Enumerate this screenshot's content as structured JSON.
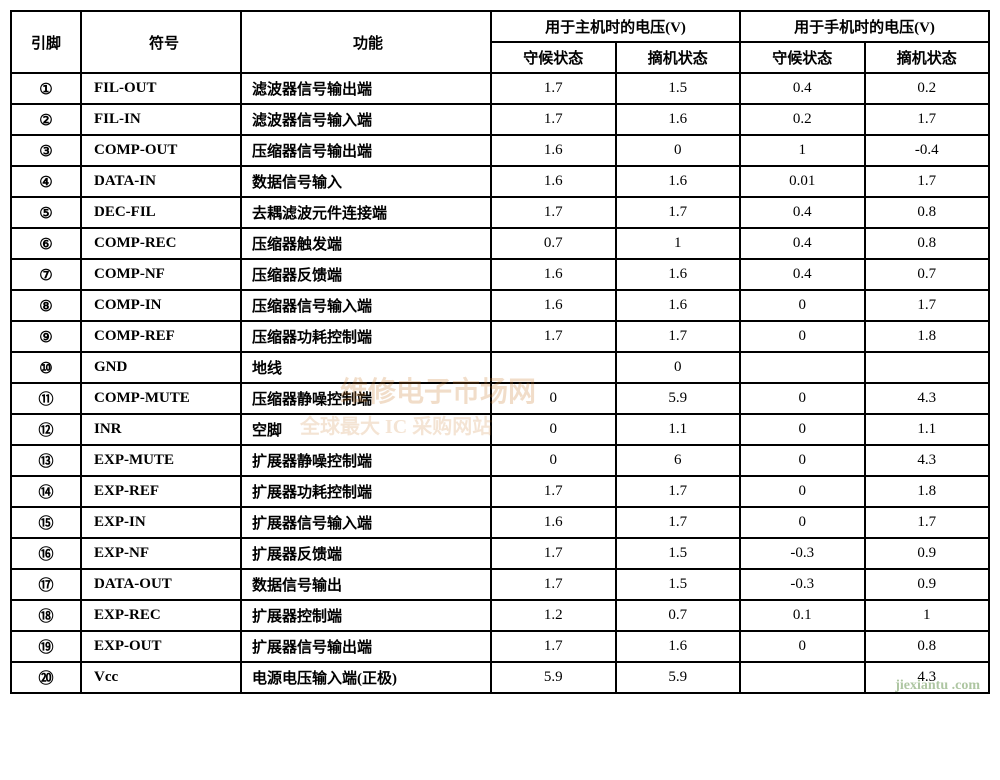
{
  "headers": {
    "pin": "引脚",
    "symbol": "符号",
    "func": "功能",
    "main_v": "用于主机时的电压(V)",
    "hand_v": "用于手机时的电压(V)",
    "standby": "守候状态",
    "offhook": "摘机状态"
  },
  "watermark": {
    "w1": "维修电子市场网",
    "w2": "全球最大 IC 采购网站",
    "w3": "jiexiantu .com"
  },
  "rows": [
    {
      "pin": "①",
      "sym": "FIL-OUT",
      "func": "滤波器信号输出端",
      "m1": "1.7",
      "m2": "1.5",
      "h1": "0.4",
      "h2": "0.2"
    },
    {
      "pin": "②",
      "sym": "FIL-IN",
      "func": "滤波器信号输入端",
      "m1": "1.7",
      "m2": "1.6",
      "h1": "0.2",
      "h2": "1.7"
    },
    {
      "pin": "③",
      "sym": "COMP-OUT",
      "func": "压缩器信号输出端",
      "m1": "1.6",
      "m2": "0",
      "h1": "1",
      "h2": "-0.4"
    },
    {
      "pin": "④",
      "sym": "DATA-IN",
      "func": "数据信号输入",
      "m1": "1.6",
      "m2": "1.6",
      "h1": "0.01",
      "h2": "1.7"
    },
    {
      "pin": "⑤",
      "sym": "DEC-FIL",
      "func": "去耦滤波元件连接端",
      "m1": "1.7",
      "m2": "1.7",
      "h1": "0.4",
      "h2": "0.8"
    },
    {
      "pin": "⑥",
      "sym": "COMP-REC",
      "func": "压缩器触发端",
      "m1": "0.7",
      "m2": "1",
      "h1": "0.4",
      "h2": "0.8"
    },
    {
      "pin": "⑦",
      "sym": "COMP-NF",
      "func": "压缩器反馈端",
      "m1": "1.6",
      "m2": "1.6",
      "h1": "0.4",
      "h2": "0.7"
    },
    {
      "pin": "⑧",
      "sym": "COMP-IN",
      "func": "压缩器信号输入端",
      "m1": "1.6",
      "m2": "1.6",
      "h1": "0",
      "h2": "1.7"
    },
    {
      "pin": "⑨",
      "sym": "COMP-REF",
      "func": "压缩器功耗控制端",
      "m1": "1.7",
      "m2": "1.7",
      "h1": "0",
      "h2": "1.8"
    },
    {
      "pin": "⑩",
      "sym": "GND",
      "func": "地线",
      "m1": "",
      "m2": "0",
      "h1": "",
      "h2": ""
    },
    {
      "pin": "⑪",
      "sym": "COMP-MUTE",
      "func": "压缩器静噪控制端",
      "m1": "0",
      "m2": "5.9",
      "h1": "0",
      "h2": "4.3"
    },
    {
      "pin": "⑫",
      "sym": "INR",
      "func": "空脚",
      "m1": "0",
      "m2": "1.1",
      "h1": "0",
      "h2": "1.1"
    },
    {
      "pin": "⑬",
      "sym": "EXP-MUTE",
      "func": "扩展器静噪控制端",
      "m1": "0",
      "m2": "6",
      "h1": "0",
      "h2": "4.3"
    },
    {
      "pin": "⑭",
      "sym": "EXP-REF",
      "func": "扩展器功耗控制端",
      "m1": "1.7",
      "m2": "1.7",
      "h1": "0",
      "h2": "1.8"
    },
    {
      "pin": "⑮",
      "sym": "EXP-IN",
      "func": "扩展器信号输入端",
      "m1": "1.6",
      "m2": "1.7",
      "h1": "0",
      "h2": "1.7"
    },
    {
      "pin": "⑯",
      "sym": "EXP-NF",
      "func": "扩展器反馈端",
      "m1": "1.7",
      "m2": "1.5",
      "h1": "-0.3",
      "h2": "0.9"
    },
    {
      "pin": "⑰",
      "sym": "DATA-OUT",
      "func": "数据信号输出",
      "m1": "1.7",
      "m2": "1.5",
      "h1": "-0.3",
      "h2": "0.9"
    },
    {
      "pin": "⑱",
      "sym": "EXP-REC",
      "func": "扩展器控制端",
      "m1": "1.2",
      "m2": "0.7",
      "h1": "0.1",
      "h2": "1"
    },
    {
      "pin": "⑲",
      "sym": "EXP-OUT",
      "func": "扩展器信号输出端",
      "m1": "1.7",
      "m2": "1.6",
      "h1": "0",
      "h2": "0.8"
    },
    {
      "pin": "⑳",
      "sym": "Vcc",
      "func": "电源电压输入端(正极)",
      "m1": "5.9",
      "m2": "5.9",
      "h1": "",
      "h2": "4.3"
    }
  ]
}
